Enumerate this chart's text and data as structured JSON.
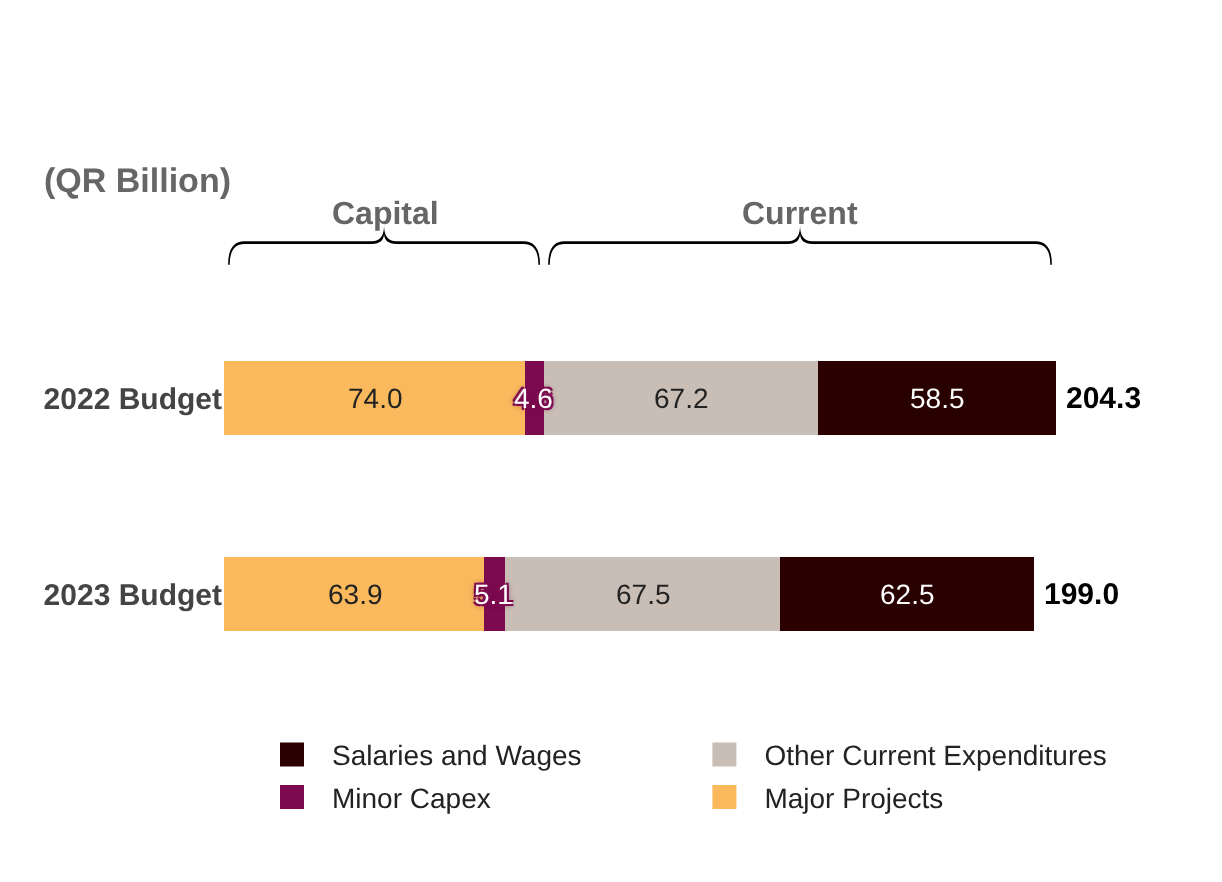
{
  "chart_data": {
    "type": "bar",
    "orientation": "horizontal",
    "stacked": true,
    "legend": "bottom",
    "categories": [
      "2022 Budget",
      "2023 Budget"
    ],
    "series": [
      {
        "name": "Major Projects",
        "color": "#f9b95c",
        "values": [
          74.0,
          63.9
        ],
        "value_labels": [
          "74.0",
          "63.9"
        ]
      },
      {
        "name": "Minor Capex",
        "color": "#7b0a4f",
        "values": [
          4.6,
          5.1
        ],
        "value_labels": [
          "4.6",
          "5.1"
        ]
      },
      {
        "name": "Other Current Expenditures",
        "color": "#c9beb5",
        "values": [
          67.2,
          67.5
        ],
        "value_labels": [
          "67.2",
          "67.5"
        ]
      },
      {
        "name": "Salaries and Wages",
        "color": "#2a0000",
        "values": [
          58.5,
          62.5
        ],
        "value_labels": [
          "58.5",
          "62.5"
        ]
      }
    ],
    "totals": [
      "204.3",
      "199.0"
    ],
    "annotations": [
      "(QR Billion)",
      "Capital",
      "Current"
    ]
  }
}
